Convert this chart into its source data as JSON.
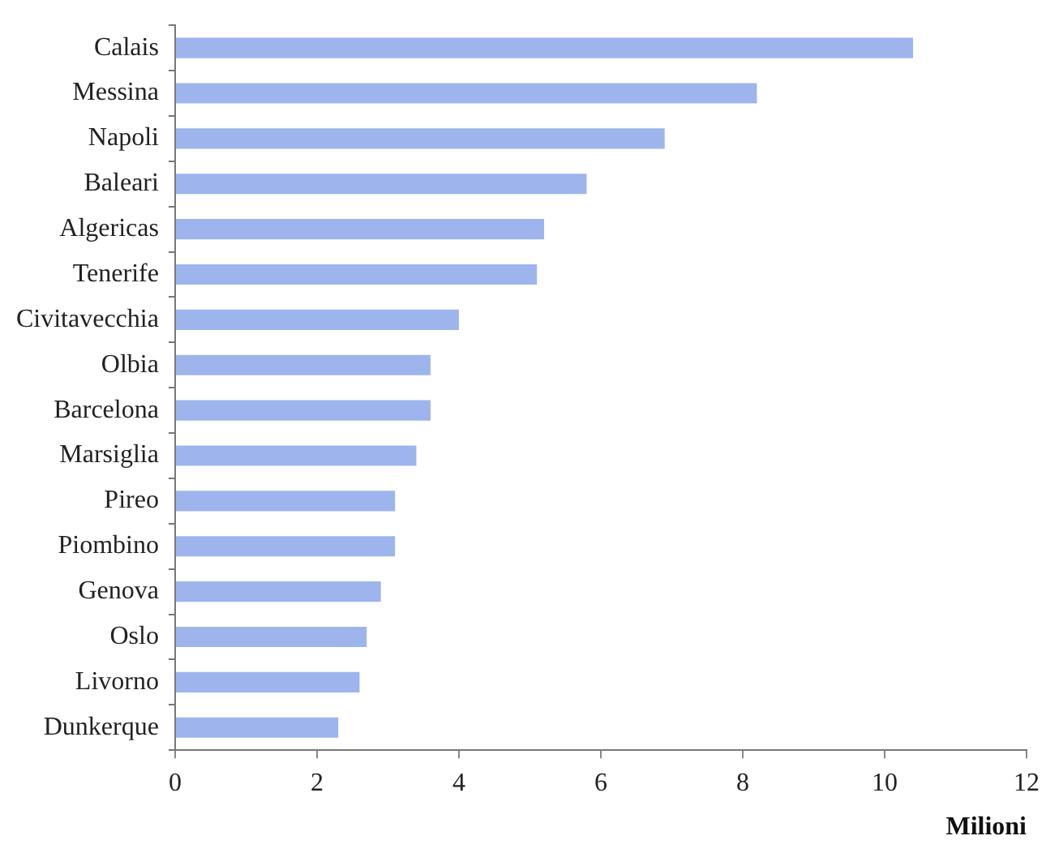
{
  "chart_data": {
    "type": "bar",
    "orientation": "horizontal",
    "xlabel": "Milioni",
    "categories": [
      "Calais",
      "Messina",
      "Napoli",
      "Baleari",
      "Algericas",
      "Tenerife",
      "Civitavecchia",
      "Olbia",
      "Barcelona",
      "Marsiglia",
      "Pireo",
      "Piombino",
      "Genova",
      "Oslo",
      "Livorno",
      "Dunkerque"
    ],
    "values": [
      10.4,
      8.2,
      6.9,
      5.8,
      5.2,
      5.1,
      4.0,
      3.6,
      3.6,
      3.4,
      3.1,
      3.1,
      2.9,
      2.7,
      2.6,
      2.3
    ],
    "color": "#9db5ec",
    "xlim": [
      0,
      12
    ],
    "xticks": [
      0,
      2,
      4,
      6,
      8,
      10,
      12
    ],
    "grid": false,
    "legend": false
  }
}
